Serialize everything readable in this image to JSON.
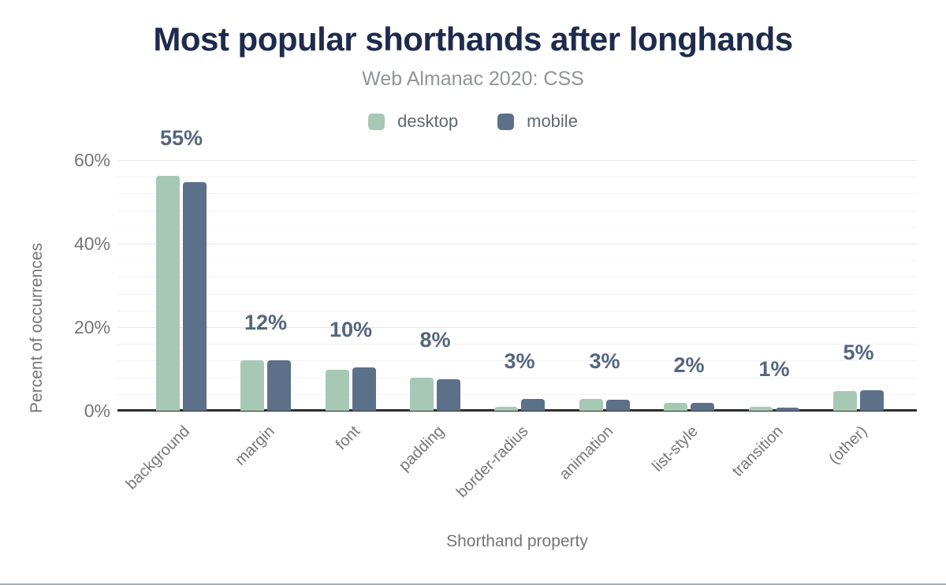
{
  "chart_data": {
    "type": "bar",
    "title": "Most popular shorthands after longhands",
    "subtitle": "Web Almanac 2020: CSS",
    "categories": [
      "background",
      "margin",
      "font",
      "padding",
      "border-radius",
      "animation",
      "list-style",
      "transition",
      "(other)"
    ],
    "series": [
      {
        "name": "desktop",
        "color": "#a7c8b5",
        "values": [
          56.3,
          12.1,
          9.9,
          8.0,
          1.0,
          2.9,
          1.8,
          1.0,
          4.8
        ]
      },
      {
        "name": "mobile",
        "color": "#5d7089",
        "values": [
          54.7,
          12.1,
          10.3,
          7.5,
          2.9,
          2.7,
          1.9,
          0.8,
          4.9
        ]
      }
    ],
    "data_labels": [
      "55%",
      "12%",
      "10%",
      "8%",
      "3%",
      "3%",
      "2%",
      "1%",
      "5%"
    ],
    "xlabel": "Shorthand property",
    "ylabel": "Percent of occurrences",
    "y_ticks": [
      "0%",
      "20%",
      "40%",
      "60%"
    ],
    "y_tick_values": [
      0,
      20,
      40,
      60
    ],
    "ylim": [
      0,
      60
    ],
    "grid": "horizontal, minor every 4%, major every 20%",
    "legend_position": "top",
    "styles": {
      "title_color": "#1e2b4d",
      "subtitle_color": "#8f939a",
      "data_label_color": "#54657f",
      "axis_text_color": "#757575",
      "axis_line_color": "#2d2d2d",
      "gridline_major_color": "#e4e4e4",
      "gridline_minor_color": "#f3f3f3"
    }
  }
}
